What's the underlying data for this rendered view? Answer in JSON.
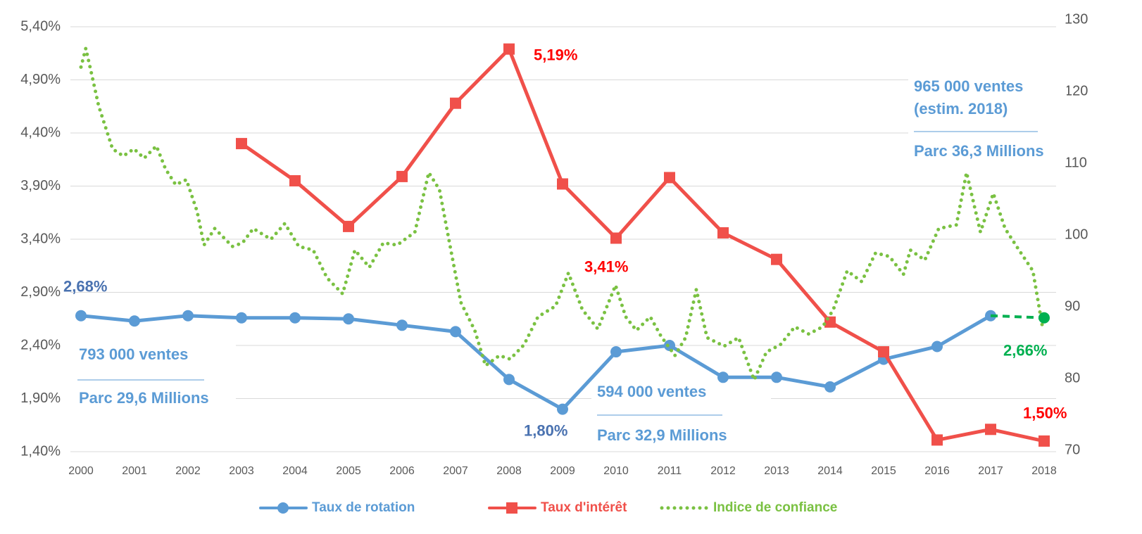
{
  "chart_data": {
    "type": "line",
    "x": [
      2000,
      2001,
      2002,
      2003,
      2004,
      2005,
      2006,
      2007,
      2008,
      2009,
      2010,
      2011,
      2012,
      2013,
      2014,
      2015,
      2016,
      2017,
      2018
    ],
    "xlim": [
      2000,
      2018
    ],
    "ylim": [
      1.4,
      5.4
    ],
    "yticks": [
      {
        "value": 1.4,
        "label": "1,40%"
      },
      {
        "value": 1.9,
        "label": "1,90%"
      },
      {
        "value": 2.4,
        "label": "2,40%"
      },
      {
        "value": 2.9,
        "label": "2,90%"
      },
      {
        "value": 3.4,
        "label": "3,40%"
      },
      {
        "value": 3.9,
        "label": "3,90%"
      },
      {
        "value": 4.4,
        "label": "4,40%"
      },
      {
        "value": 4.9,
        "label": "4,90%"
      },
      {
        "value": 5.4,
        "label": "5,40%"
      }
    ],
    "y2lim": [
      70,
      130
    ],
    "y2ticks": [
      70,
      80,
      90,
      100,
      110,
      120,
      130
    ],
    "grid": true,
    "legend": "bottom",
    "series": [
      {
        "name": "Taux de rotation",
        "color": "#5b9bd5",
        "marker": "circle",
        "label_color": "#4a72b0",
        "values": [
          2.68,
          2.63,
          2.68,
          2.66,
          2.66,
          2.65,
          2.59,
          2.53,
          2.08,
          1.8,
          2.34,
          2.4,
          2.1,
          2.1,
          2.01,
          2.27,
          2.39,
          2.68,
          null
        ],
        "value_labels": [
          "2,68%",
          null,
          null,
          null,
          null,
          null,
          null,
          null,
          null,
          "1,80%",
          null,
          null,
          null,
          null,
          null,
          null,
          null,
          null,
          null
        ]
      },
      {
        "name": "Taux d'intérêt",
        "color": "#f0504a",
        "marker": "square",
        "label_color": "#ff0000",
        "values": [
          null,
          null,
          null,
          4.3,
          3.95,
          3.52,
          3.99,
          4.68,
          5.19,
          3.92,
          3.41,
          3.98,
          3.46,
          3.21,
          2.62,
          2.34,
          1.51,
          1.61,
          1.5
        ],
        "value_labels": [
          null,
          null,
          null,
          null,
          null,
          null,
          null,
          null,
          "5,19%",
          null,
          "3,41%",
          null,
          null,
          null,
          null,
          null,
          null,
          null,
          "1,50%"
        ]
      },
      {
        "name": "Indice de confiance",
        "color": "#7ac142",
        "axis": "y2",
        "dotted": true,
        "x": [
          2000,
          2000.09,
          2000.2,
          2000.33,
          2000.46,
          2000.59,
          2000.79,
          2000.99,
          2001.18,
          2001.41,
          2001.58,
          2001.77,
          2001.97,
          2002.17,
          2002.3,
          2002.5,
          2002.83,
          2003.02,
          2003.22,
          2003.55,
          2003.81,
          2004.07,
          2004.34,
          2004.6,
          2004.89,
          2005.12,
          2005.39,
          2005.65,
          2005.91,
          2006.24,
          2006.5,
          2006.7,
          2006.9,
          2007.1,
          2007.36,
          2007.56,
          2007.82,
          2008.02,
          2008.28,
          2008.54,
          2008.87,
          2009.11,
          2009.37,
          2009.66,
          2009.99,
          2010.18,
          2010.38,
          2010.64,
          2010.84,
          2011.1,
          2011.3,
          2011.5,
          2011.7,
          2012.02,
          2012.29,
          2012.58,
          2012.81,
          2013.07,
          2013.34,
          2013.6,
          2013.86,
          2014.06,
          2014.32,
          2014.59,
          2014.85,
          2015.11,
          2015.37,
          2015.5,
          2015.77,
          2016.03,
          2016.36,
          2016.55,
          2016.81,
          2017.05,
          2017.27,
          2017.53,
          2017.79,
          2017.98
        ],
        "values": [
          123.4,
          126,
          122.4,
          118,
          115,
          112,
          111,
          112,
          110.7,
          112.4,
          109.2,
          107,
          107.7,
          103.3,
          98.6,
          100.9,
          98.4,
          98.9,
          100.9,
          99.4,
          101.6,
          98.4,
          97.9,
          94,
          91.8,
          97.9,
          95.5,
          98.9,
          98.6,
          100.4,
          108.7,
          106.3,
          98.4,
          90.6,
          86.7,
          81.8,
          83.2,
          82.7,
          84.7,
          88.6,
          90.1,
          94.7,
          89.6,
          86.9,
          93,
          88.6,
          86.7,
          88.6,
          85.9,
          83.2,
          85.7,
          92.4,
          85.7,
          84.5,
          85.7,
          79.8,
          83.7,
          84.7,
          87.2,
          86.2,
          87.2,
          89.6,
          95,
          93.5,
          97.5,
          97,
          94.5,
          97.9,
          96.5,
          100.9,
          101.4,
          108.7,
          100.4,
          105.8,
          100.9,
          97.9,
          95,
          86.7
        ]
      }
    ],
    "estimate": {
      "color": "#00b050",
      "x": [
        2017,
        2018
      ],
      "values": [
        2.68,
        2.66
      ],
      "value_labels": [
        null,
        "2,66%"
      ]
    },
    "annotations": [
      "793 000 ventes",
      "Parc 29,6 Millions",
      "594 000 ventes",
      "Parc 32,9 Millions",
      "965 000 ventes",
      "(estim. 2018)",
      "Parc 36,3 Millions"
    ]
  }
}
